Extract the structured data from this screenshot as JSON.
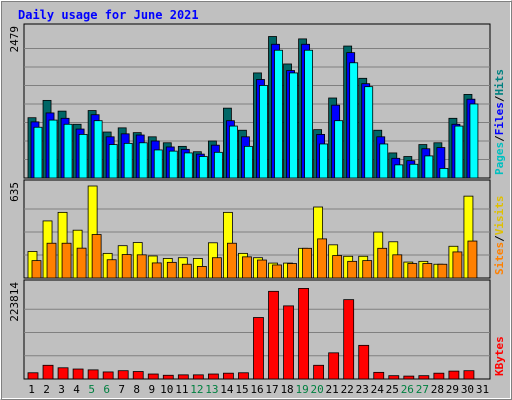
{
  "chart_data": {
    "type": "bar",
    "title": "Daily usage for June 2021",
    "categories": [
      "1",
      "2",
      "3",
      "4",
      "5",
      "6",
      "7",
      "8",
      "9",
      "10",
      "11",
      "12",
      "13",
      "14",
      "15",
      "16",
      "17",
      "18",
      "19",
      "20",
      "21",
      "22",
      "23",
      "24",
      "25",
      "26",
      "27",
      "28",
      "29",
      "30",
      "31"
    ],
    "weekend_days": [
      "5",
      "6",
      "12",
      "13",
      "19",
      "20",
      "26",
      "27"
    ],
    "panels": [
      {
        "id": "hits-files-pages",
        "ymax_label": "2479",
        "ymax": 2479,
        "legend": [
          "Pages",
          "Files",
          "Hits"
        ],
        "series": [
          {
            "name": "Hits",
            "color": "#006666",
            "values": [
              1010,
              1300,
              1120,
              900,
              1130,
              770,
              840,
              760,
              690,
              590,
              530,
              440,
              620,
              1170,
              800,
              1760,
              2370,
              1910,
              2330,
              810,
              1340,
              2210,
              1670,
              800,
              420,
              360,
              560,
              590,
              1000,
              1400,
              0
            ]
          },
          {
            "name": "Files",
            "color": "#0000ff",
            "values": [
              940,
              1090,
              1000,
              820,
              1060,
              690,
              740,
              720,
              620,
              520,
              480,
              400,
              550,
              960,
              690,
              1650,
              2240,
              1800,
              2240,
              730,
              1220,
              2100,
              1580,
              690,
              330,
              290,
              490,
              510,
              900,
              1320,
              0
            ]
          },
          {
            "name": "Pages",
            "color": "#00ffff",
            "values": [
              850,
              970,
              900,
              730,
              960,
              560,
              580,
              590,
              470,
              450,
              420,
              360,
              430,
              870,
              530,
              1550,
              2140,
              1760,
              2140,
              570,
              960,
              1930,
              1530,
              570,
              220,
              230,
              370,
              160,
              870,
              1240,
              0
            ]
          }
        ]
      },
      {
        "id": "visits-sites",
        "ymax_label": "635",
        "ymax": 635,
        "legend": [
          "Sites",
          "Visits"
        ],
        "series": [
          {
            "name": "Visits",
            "color": "#ffff00",
            "values": [
              183,
              394,
              453,
              330,
              635,
              170,
              223,
              245,
              152,
              135,
              140,
              135,
              243,
              453,
              170,
              140,
              103,
              103,
              205,
              490,
              229,
              150,
              150,
              317,
              250,
              110,
              115,
              95,
              219,
              565,
              0
            ]
          },
          {
            "name": "Sites",
            "color": "#ff8000",
            "values": [
              120,
              240,
              240,
              206,
              300,
              126,
              162,
              160,
              104,
              108,
              95,
              80,
              140,
              240,
              146,
              124,
              90,
              100,
              205,
              270,
              155,
              115,
              120,
              205,
              160,
              100,
              100,
              95,
              180,
              255,
              0
            ]
          }
        ]
      },
      {
        "id": "kbytes",
        "ymax_label": "223814",
        "ymax": 223814,
        "legend": [
          "KBytes"
        ],
        "series": [
          {
            "name": "KBytes",
            "color": "#ff0000",
            "values": [
              15000,
              33000,
              27000,
              24000,
              22000,
              17000,
              20000,
              18000,
              12000,
              9000,
              10000,
              10000,
              12000,
              14000,
              15000,
              148000,
              211000,
              176000,
              218000,
              33000,
              63000,
              191000,
              81000,
              16000,
              8000,
              7000,
              8000,
              14000,
              19000,
              20000,
              0
            ]
          }
        ]
      }
    ]
  }
}
